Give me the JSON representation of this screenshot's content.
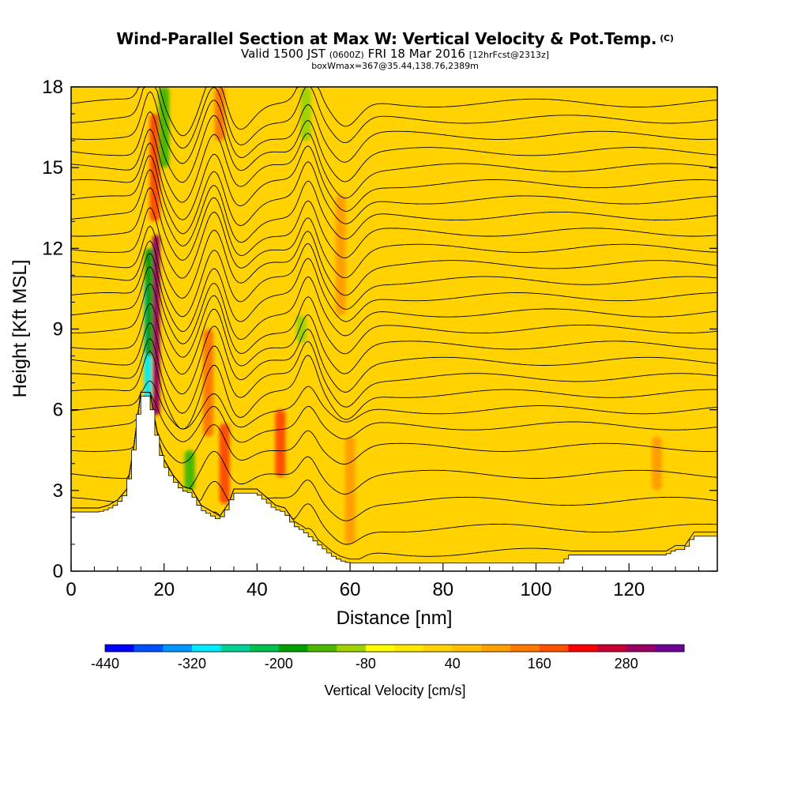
{
  "title": {
    "main": "Wind-Parallel Section at Max W: Vertical Velocity & Pot.Temp.",
    "mark": "(C)",
    "valid_prefix": "Valid 1500 JST",
    "valid_utc": "(0600Z)",
    "valid_date": "FRI 18 Mar 2016",
    "forecast": "[12hrFcst@2313z]",
    "box": "boxWmax=367@35.44,138.76,2389m"
  },
  "chart_data": {
    "type": "heatmap",
    "xlabel": "Distance [nm]",
    "ylabel": "Height [Kft MSL]",
    "xlim": [
      0,
      139
    ],
    "ylim": [
      0,
      18
    ],
    "x_ticks": [
      0,
      20,
      40,
      60,
      80,
      100,
      120
    ],
    "y_ticks": [
      0,
      3,
      6,
      9,
      12,
      15,
      18
    ],
    "colorbar": {
      "label": "Vertical Velocity [cm/s]",
      "tick_labels": [
        "-440",
        "-320",
        "-200",
        "-80",
        "40",
        "160",
        "280"
      ],
      "tick_values": [
        -440,
        -320,
        -200,
        -80,
        40,
        160,
        280
      ],
      "bins": [
        {
          "from": -440,
          "to": -400,
          "color": "#0000ff"
        },
        {
          "from": -400,
          "to": -360,
          "color": "#0050ff"
        },
        {
          "from": -360,
          "to": -320,
          "color": "#0096ff"
        },
        {
          "from": -320,
          "to": -280,
          "color": "#00eaff"
        },
        {
          "from": -280,
          "to": -240,
          "color": "#00d296"
        },
        {
          "from": -240,
          "to": -200,
          "color": "#00c050"
        },
        {
          "from": -200,
          "to": -160,
          "color": "#00a000"
        },
        {
          "from": -160,
          "to": -120,
          "color": "#4cb800"
        },
        {
          "from": -120,
          "to": -80,
          "color": "#a0d200"
        },
        {
          "from": -80,
          "to": -40,
          "color": "#ffff00"
        },
        {
          "from": -40,
          "to": 0,
          "color": "#ffe800"
        },
        {
          "from": 0,
          "to": 40,
          "color": "#ffd200"
        },
        {
          "from": 40,
          "to": 80,
          "color": "#ffbe00"
        },
        {
          "from": 80,
          "to": 120,
          "color": "#ffa000"
        },
        {
          "from": 120,
          "to": 160,
          "color": "#ff7800"
        },
        {
          "from": 160,
          "to": 200,
          "color": "#ff5000"
        },
        {
          "from": 200,
          "to": 240,
          "color": "#ff0000"
        },
        {
          "from": 240,
          "to": 280,
          "color": "#c80032"
        },
        {
          "from": 280,
          "to": 320,
          "color": "#9a0064"
        },
        {
          "from": 320,
          "to": 360,
          "color": "#6e0096"
        }
      ]
    },
    "terrain_kft": {
      "x": [
        0,
        2,
        4,
        6,
        8,
        10,
        12,
        13.5,
        15,
        16,
        17,
        18,
        19,
        20,
        22,
        24,
        26,
        28,
        29,
        30,
        32,
        34,
        35,
        36,
        38,
        40,
        42,
        44,
        46,
        48,
        50,
        52,
        54,
        56,
        58,
        60,
        62,
        64,
        66,
        70,
        80,
        90,
        100,
        104,
        106,
        107,
        108,
        110,
        112,
        114,
        116,
        118,
        120,
        122,
        124,
        126,
        128,
        130,
        132,
        134,
        136,
        138,
        139
      ],
      "y": [
        2.2,
        2.2,
        2.2,
        2.2,
        2.3,
        2.5,
        2.9,
        4.5,
        6.5,
        6.5,
        6.5,
        5.5,
        4.6,
        4.0,
        3.4,
        3.0,
        2.9,
        2.3,
        2.2,
        2.1,
        1.9,
        2.4,
        2.9,
        2.9,
        2.9,
        2.9,
        2.6,
        2.3,
        2.2,
        1.7,
        1.5,
        1.2,
        0.9,
        0.6,
        0.4,
        0.3,
        0.3,
        0.3,
        0.3,
        0.3,
        0.3,
        0.3,
        0.3,
        0.3,
        0.3,
        0.6,
        0.6,
        0.6,
        0.6,
        0.6,
        0.6,
        0.6,
        0.6,
        0.6,
        0.6,
        0.6,
        0.6,
        0.8,
        0.8,
        1.3,
        1.3,
        1.3,
        1.3
      ]
    },
    "velocity_features": [
      {
        "x": 16.5,
        "y_from": 6.4,
        "y_to": 10.8,
        "value": -300
      },
      {
        "x": 17.0,
        "y_from": 8.0,
        "y_to": 12.0,
        "value": -170
      },
      {
        "x": 18.3,
        "y_from": 5.8,
        "y_to": 12.5,
        "value": 280
      },
      {
        "x": 18.0,
        "y_from": 13.0,
        "y_to": 17.0,
        "value": 160
      },
      {
        "x": 20.0,
        "y_from": 15.0,
        "y_to": 18.0,
        "value": -160
      },
      {
        "x": 25.5,
        "y_from": 3.0,
        "y_to": 4.5,
        "value": -150
      },
      {
        "x": 29.5,
        "y_from": 5.0,
        "y_to": 9.0,
        "value": 120
      },
      {
        "x": 33.0,
        "y_from": 2.5,
        "y_to": 5.5,
        "value": 180
      },
      {
        "x": 32.0,
        "y_from": 16.0,
        "y_to": 18.0,
        "value": 120
      },
      {
        "x": 45.0,
        "y_from": 3.5,
        "y_to": 6.0,
        "value": 160
      },
      {
        "x": 50.5,
        "y_from": 16.0,
        "y_to": 18.0,
        "value": -120
      },
      {
        "x": 49.5,
        "y_from": 8.5,
        "y_to": 9.5,
        "value": -100
      },
      {
        "x": 58.0,
        "y_from": 9.5,
        "y_to": 14.0,
        "value": 100
      },
      {
        "x": 60.0,
        "y_from": 1.0,
        "y_to": 5.0,
        "value": 80
      },
      {
        "x": 126.0,
        "y_from": 3.0,
        "y_to": 5.0,
        "value": 90
      }
    ],
    "theta_contour_base_kft": [
      0.7,
      1.6,
      2.6,
      3.6,
      4.6,
      5.4,
      6.0,
      6.6,
      7.2,
      7.8,
      8.4,
      9.0,
      9.6,
      10.2,
      10.8,
      11.4,
      12.0,
      12.6,
      13.2,
      13.8,
      14.4,
      15.0,
      15.6,
      16.2,
      16.8,
      17.4
    ]
  }
}
